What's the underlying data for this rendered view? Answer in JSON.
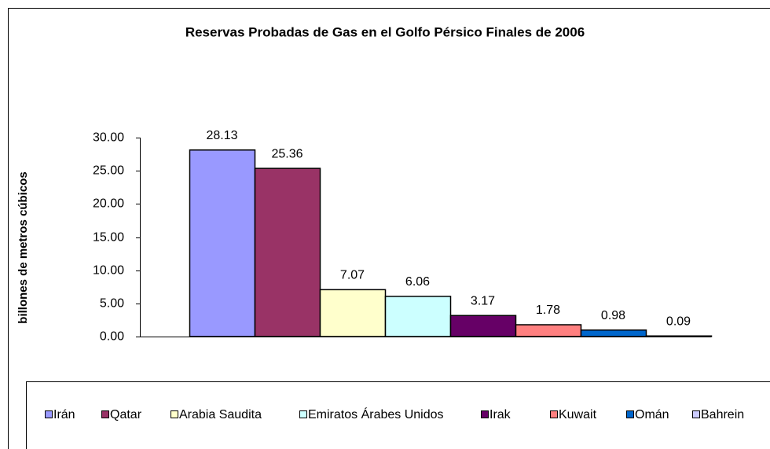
{
  "chart_data": {
    "type": "bar",
    "title": "Reservas Probadas de Gas en el Golfo Pérsico Finales de 2006",
    "y_label": "billones de metros cúbicos",
    "series": [
      {
        "name": "Irán",
        "color": "#9999FF",
        "values": [
          28.13
        ]
      },
      {
        "name": "Qatar",
        "color": "#993366",
        "values": [
          25.36
        ]
      },
      {
        "name": "Arabia Saudita",
        "color": "#FFFFCC",
        "values": [
          7.07
        ]
      },
      {
        "name": "Emiratos Árabes Unidos",
        "color": "#CCFFFF",
        "values": [
          6.06
        ]
      },
      {
        "name": "Irak",
        "color": "#660066",
        "values": [
          3.17
        ]
      },
      {
        "name": "Kuwait",
        "color": "#FF8080",
        "values": [
          1.78
        ]
      },
      {
        "name": "Omán",
        "color": "#0066CC",
        "values": [
          0.98
        ]
      },
      {
        "name": "Bahrein",
        "color": "#CCCCFF",
        "values": [
          0.09
        ]
      }
    ],
    "ylim": [
      0,
      30
    ],
    "yticks": [
      {
        "value": 0,
        "label": "0.00"
      },
      {
        "value": 5,
        "label": "5.00"
      },
      {
        "value": 10,
        "label": "10.00"
      },
      {
        "value": 15,
        "label": "15.00"
      },
      {
        "value": 20,
        "label": "20.00"
      },
      {
        "value": 25,
        "label": "25.00"
      },
      {
        "value": 30,
        "label": "30.00"
      }
    ],
    "legend": "bottom"
  }
}
